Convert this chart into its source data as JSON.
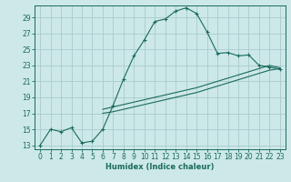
{
  "xlabel": "Humidex (Indice chaleur)",
  "bg_color": "#cce8e8",
  "grid_color": "#aacccc",
  "line_color": "#1a6b5a",
  "xlim": [
    -0.5,
    23.5
  ],
  "ylim": [
    12.5,
    30.5
  ],
  "xticks": [
    0,
    1,
    2,
    3,
    4,
    5,
    6,
    7,
    8,
    9,
    10,
    11,
    12,
    13,
    14,
    15,
    16,
    17,
    18,
    19,
    20,
    21,
    22,
    23
  ],
  "yticks": [
    13,
    15,
    17,
    19,
    21,
    23,
    25,
    27,
    29
  ],
  "curve1_x": [
    0,
    1,
    2,
    3,
    4,
    5,
    6,
    7,
    8,
    9,
    10,
    11,
    12,
    13,
    14,
    15,
    16,
    17,
    18,
    19,
    20,
    21,
    22,
    23
  ],
  "curve1_y": [
    13,
    15,
    14.7,
    15.2,
    13.3,
    13.5,
    15.0,
    18.0,
    21.3,
    24.2,
    26.2,
    28.5,
    28.8,
    29.8,
    30.2,
    29.5,
    27.2,
    24.5,
    24.6,
    24.2,
    24.3,
    23.0,
    22.8,
    22.5
  ],
  "curve2_x": [
    6,
    7,
    8,
    9,
    10,
    11,
    12,
    13,
    14,
    15,
    16,
    17,
    18,
    19,
    20,
    21,
    22,
    23
  ],
  "curve2_y": [
    17.0,
    17.2,
    17.5,
    17.8,
    18.1,
    18.4,
    18.7,
    19.0,
    19.3,
    19.6,
    20.0,
    20.4,
    20.8,
    21.2,
    21.6,
    22.0,
    22.4,
    22.6
  ],
  "curve3_x": [
    6,
    7,
    8,
    9,
    10,
    11,
    12,
    13,
    14,
    15,
    16,
    17,
    18,
    19,
    20,
    21,
    22,
    23
  ],
  "curve3_y": [
    17.5,
    17.8,
    18.1,
    18.4,
    18.7,
    19.0,
    19.3,
    19.6,
    19.9,
    20.2,
    20.6,
    21.0,
    21.4,
    21.8,
    22.2,
    22.6,
    23.0,
    22.7
  ]
}
